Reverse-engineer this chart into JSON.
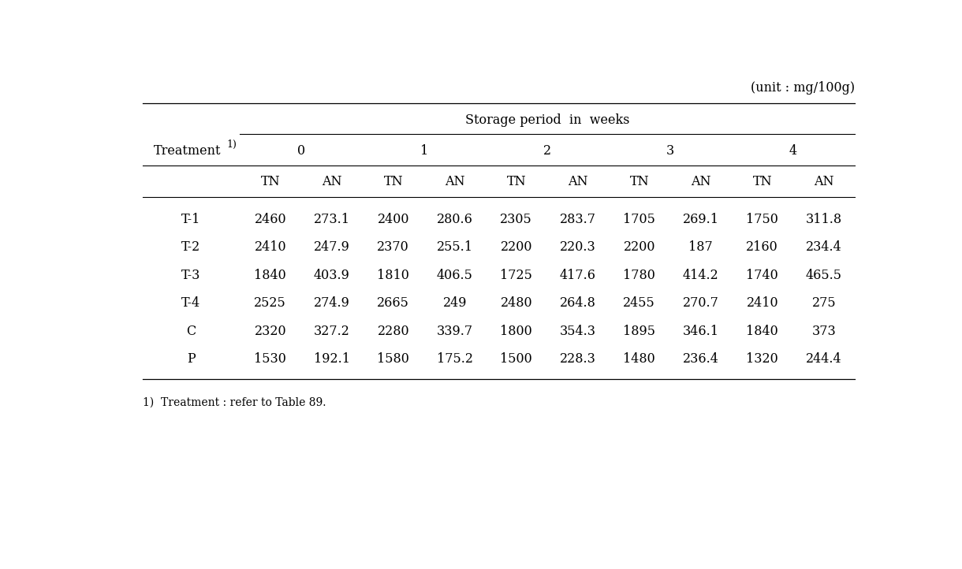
{
  "unit_label": "(unit : mg/100g)",
  "storage_header": "Storage period  in  weeks",
  "week_labels": [
    "0",
    "1",
    "2",
    "3",
    "4"
  ],
  "tn_an_labels": [
    "TN",
    "AN",
    "TN",
    "AN",
    "TN",
    "AN",
    "TN",
    "AN",
    "TN",
    "AN"
  ],
  "row_labels": [
    "T-1",
    "T-2",
    "T-3",
    "T-4",
    "C",
    "P"
  ],
  "data": [
    [
      2460,
      273.1,
      2400,
      280.6,
      2305,
      283.7,
      1705,
      269.1,
      1750,
      311.8
    ],
    [
      2410,
      247.9,
      2370,
      255.1,
      2200,
      220.3,
      2200,
      187.0,
      2160,
      234.4
    ],
    [
      1840,
      403.9,
      1810,
      406.5,
      1725,
      417.6,
      1780,
      414.2,
      1740,
      465.5
    ],
    [
      2525,
      274.9,
      2665,
      249.0,
      2480,
      264.8,
      2455,
      270.7,
      2410,
      275.0
    ],
    [
      2320,
      327.2,
      2280,
      339.7,
      1800,
      354.3,
      1895,
      346.1,
      1840,
      373.0
    ],
    [
      1530,
      192.1,
      1580,
      175.2,
      1500,
      228.3,
      1480,
      236.4,
      1320,
      244.4
    ]
  ],
  "footnote_text": "1)  Treatment : refer to Table 89.",
  "bg_color": "#ffffff",
  "text_color": "#000000",
  "font_size": 11.5,
  "font_family": "DejaVu Serif"
}
